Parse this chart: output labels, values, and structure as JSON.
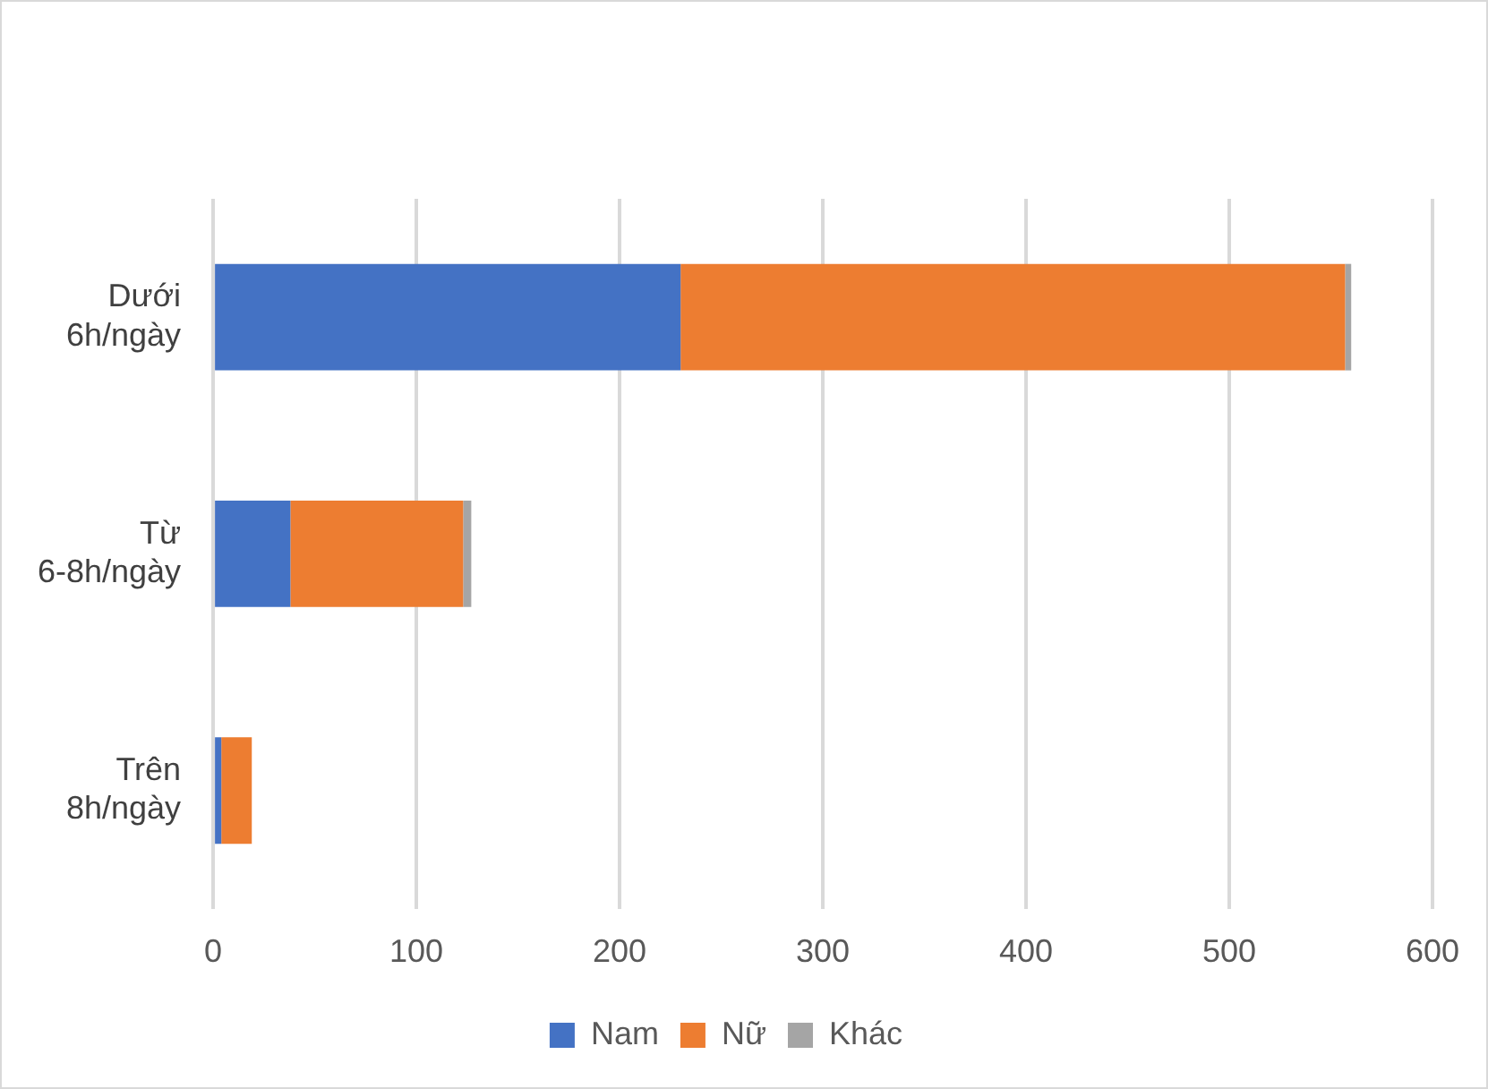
{
  "chart_data": {
    "type": "bar",
    "orientation": "horizontal",
    "stacked": true,
    "categories": [
      "Dưới 6h/ngày",
      "Từ 6-8h/ngày",
      "Trên 8h/ngày"
    ],
    "series": [
      {
        "name": "Nam",
        "color": "#4472c4",
        "values": [
          230,
          38,
          4
        ]
      },
      {
        "name": "Nữ",
        "color": "#ed7d31",
        "values": [
          327,
          85,
          15
        ]
      },
      {
        "name": "Khác",
        "color": "#a5a5a5",
        "values": [
          3,
          4,
          0
        ]
      }
    ],
    "xlim": [
      0,
      600
    ],
    "xticks": [
      0,
      100,
      200,
      300,
      400,
      500,
      600
    ],
    "grid": "x",
    "legend": "bottom"
  }
}
